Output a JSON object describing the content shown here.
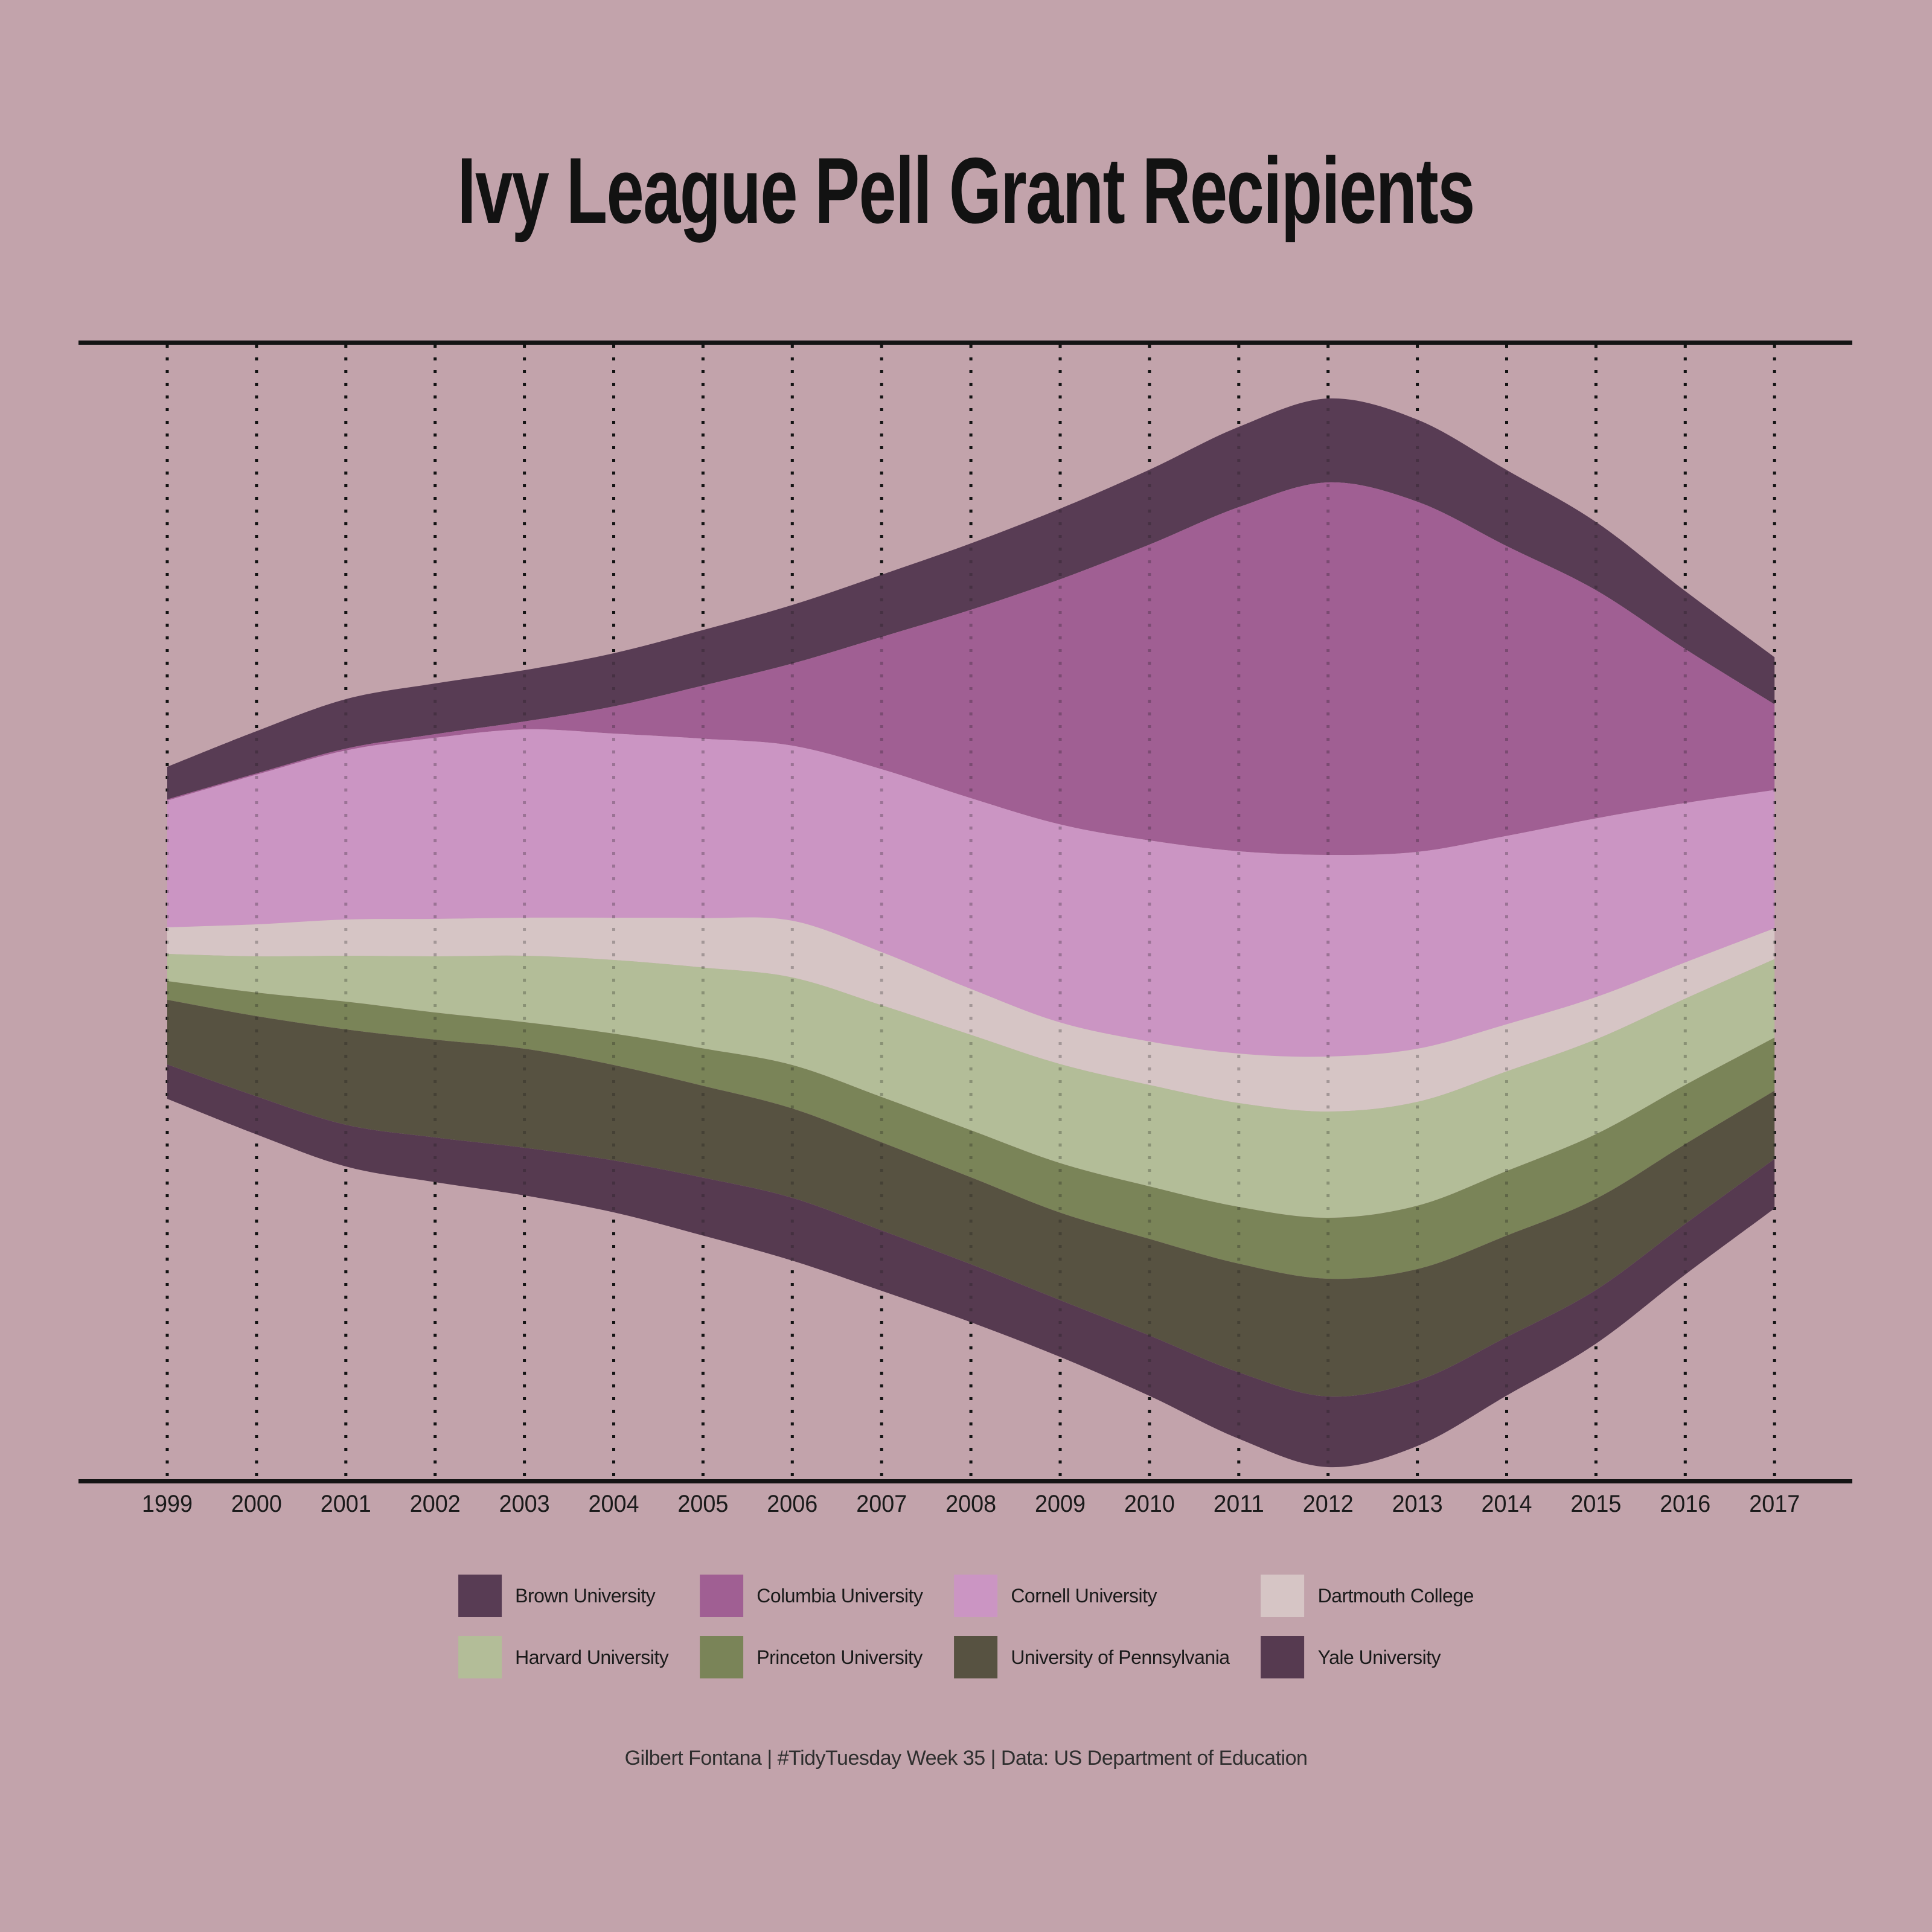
{
  "page": {
    "title": "Ivy League Pell Grant Recipients",
    "caption": "Gilbert Fontana | #TidyTuesday Week 35 | Data: US Department of Education",
    "background_color": "#c2a3ab",
    "text_color": "#121212"
  },
  "chart_data": {
    "type": "area",
    "variant": "streamgraph-centered-silhouette",
    "title": "Ivy League Pell Grant Recipients",
    "xlabel": "",
    "ylabel": "",
    "grid": "vertical-dotted-per-year",
    "legend_position": "bottom",
    "axis_color": "#141414",
    "y_axis_shown": false,
    "units_note": "No y-axis is shown; values are relative band thickness (pixels) read from the streamgraph",
    "x": [
      1999,
      2000,
      2001,
      2002,
      2003,
      2004,
      2005,
      2006,
      2007,
      2008,
      2009,
      2010,
      2011,
      2012,
      2013,
      2014,
      2015,
      2016,
      2017
    ],
    "series": [
      {
        "name": "Brown University",
        "color": "#583c54",
        "values": [
          54,
          70,
          82,
          84,
          85,
          88,
          92,
          97,
          103,
          110,
          117,
          124,
          133,
          139,
          136,
          126,
          113,
          96,
          78
        ]
      },
      {
        "name": "Columbia University",
        "color": "#a05f93",
        "values": [
          2,
          2,
          3,
          6,
          13,
          45,
          88,
          136,
          219,
          312,
          406,
          490,
          570,
          617,
          580,
          480,
          378,
          255,
          142
        ]
      },
      {
        "name": "Cornell University",
        "color": "#cb95c3",
        "values": [
          210,
          248,
          280,
          300,
          312,
          305,
          297,
          290,
          303,
          316,
          328,
          333,
          335,
          334,
          326,
          312,
          296,
          264,
          229
        ]
      },
      {
        "name": "Dartmouth College",
        "color": "#d6c5c5",
        "values": [
          44,
          53,
          60,
          62,
          63,
          70,
          82,
          94,
          88,
          76,
          69,
          72,
          82,
          91,
          88,
          78,
          70,
          60,
          51
        ]
      },
      {
        "name": "Harvard University",
        "color": "#b3bd98",
        "values": [
          45,
          60,
          76,
          93,
          110,
          122,
          134,
          145,
          152,
          158,
          164,
          168,
          172,
          176,
          172,
          165,
          157,
          143,
          130
        ]
      },
      {
        "name": "Princeton University",
        "color": "#7a8458",
        "values": [
          31,
          39,
          46,
          45,
          44,
          52,
          62,
          72,
          75,
          78,
          82,
          87,
          94,
          101,
          105,
          107,
          107,
          98,
          88
        ]
      },
      {
        "name": "University of Pennsylvania",
        "color": "#575241",
        "values": [
          107,
          133,
          158,
          162,
          164,
          158,
          152,
          148,
          146,
          144,
          145,
          160,
          180,
          195,
          185,
          168,
          151,
          132,
          113
        ]
      },
      {
        "name": "Yale University",
        "color": "#563a50",
        "values": [
          57,
          63,
          69,
          74,
          79,
          86,
          96,
          104,
          100,
          96,
          94,
          100,
          110,
          117,
          108,
          97,
          89,
          84,
          82
        ]
      }
    ]
  }
}
